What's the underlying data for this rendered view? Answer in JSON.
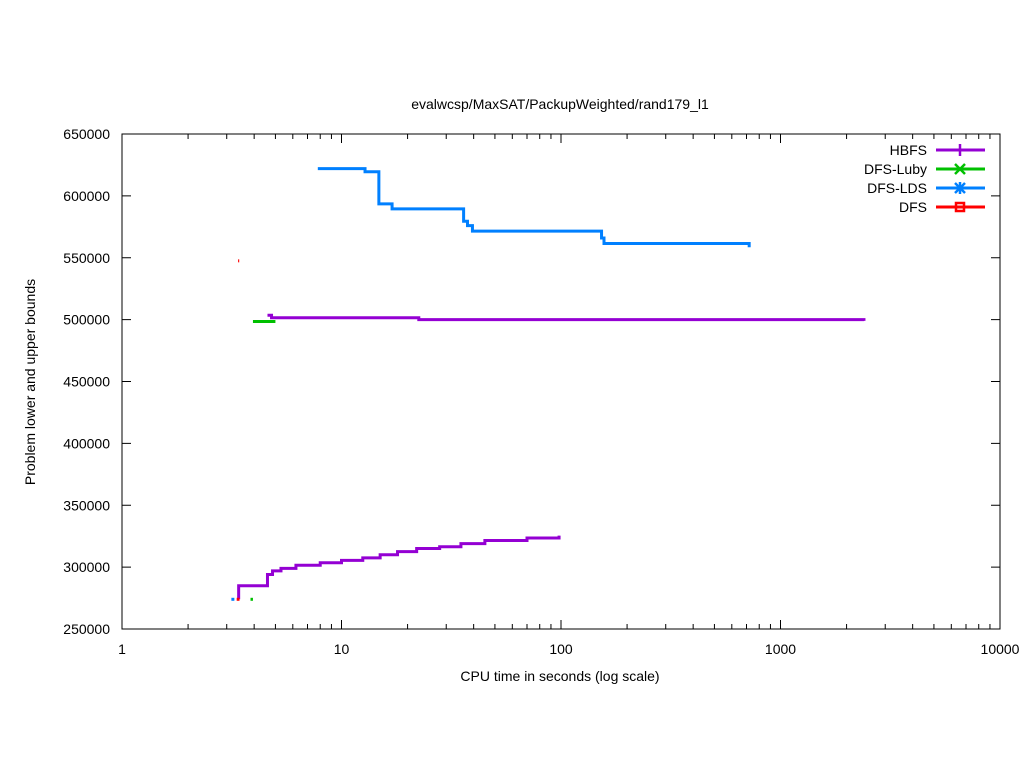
{
  "chart_data": {
    "type": "line",
    "title": "evalwcsp/MaxSAT/PackupWeighted/rand179_l1",
    "xlabel": "CPU time in seconds (log scale)",
    "ylabel": "Problem lower and upper bounds",
    "xscale": "log",
    "xlim": [
      1,
      10000
    ],
    "ylim": [
      250000,
      650000
    ],
    "xticks": [
      1,
      10,
      100,
      1000,
      10000
    ],
    "xtick_labels": [
      "1",
      "10",
      "100",
      "1000",
      "10000"
    ],
    "yticks": [
      250000,
      300000,
      350000,
      400000,
      450000,
      500000,
      550000,
      600000,
      650000
    ],
    "ytick_labels": [
      "250000",
      "300000",
      "350000",
      "400000",
      "450000",
      "500000",
      "550000",
      "600000",
      "650000"
    ],
    "grid": false,
    "legend_position": "top-right",
    "series": [
      {
        "name": "HBFS",
        "color": "#9400d3",
        "marker": "plus",
        "segments": [
          {
            "kind": "upper",
            "points": [
              [
                4.6,
                503500
              ],
              [
                4.8,
                503500
              ],
              [
                4.8,
                501500
              ],
              [
                22.5,
                501500
              ],
              [
                22.5,
                500000
              ],
              [
                2400,
                500000
              ],
              [
                2400,
                499000
              ]
            ]
          },
          {
            "kind": "lower",
            "points": [
              [
                3.4,
                274000
              ],
              [
                3.4,
                285000
              ],
              [
                4.6,
                285000
              ],
              [
                4.6,
                294000
              ],
              [
                4.85,
                294000
              ],
              [
                4.85,
                297000
              ],
              [
                5.3,
                297000
              ],
              [
                5.3,
                299000
              ],
              [
                6.2,
                299000
              ],
              [
                6.2,
                301500
              ],
              [
                8.0,
                301500
              ],
              [
                8.0,
                303500
              ],
              [
                10.0,
                303500
              ],
              [
                10.0,
                305500
              ],
              [
                12.5,
                305500
              ],
              [
                12.5,
                307500
              ],
              [
                15.0,
                307500
              ],
              [
                15.0,
                310000
              ],
              [
                18.0,
                310000
              ],
              [
                18.0,
                312500
              ],
              [
                22.0,
                312500
              ],
              [
                22.0,
                315000
              ],
              [
                28.0,
                315000
              ],
              [
                28.0,
                316500
              ],
              [
                35.0,
                316500
              ],
              [
                35.0,
                319000
              ],
              [
                45.0,
                319000
              ],
              [
                45.0,
                321500
              ],
              [
                70.0,
                321500
              ],
              [
                70.0,
                323500
              ],
              [
                98.0,
                323500
              ],
              [
                98.0,
                325500
              ]
            ]
          }
        ]
      },
      {
        "name": "DFS-Luby",
        "color": "#00c000",
        "marker": "cross",
        "segments": [
          {
            "kind": "upper",
            "points": [
              [
                3.95,
                498500
              ],
              [
                5.0,
                498500
              ]
            ]
          },
          {
            "kind": "lower",
            "points": [
              [
                3.85,
                274000
              ],
              [
                3.95,
                274000
              ]
            ]
          }
        ]
      },
      {
        "name": "DFS-LDS",
        "color": "#0080ff",
        "marker": "star",
        "segments": [
          {
            "kind": "upper",
            "points": [
              [
                7.8,
                622000
              ],
              [
                12.8,
                622000
              ],
              [
                12.8,
                619500
              ],
              [
                14.8,
                619500
              ],
              [
                14.8,
                593500
              ],
              [
                17.0,
                593500
              ],
              [
                17.0,
                589500
              ],
              [
                36.0,
                589500
              ],
              [
                36.0,
                579500
              ],
              [
                37.5,
                579500
              ],
              [
                37.5,
                576000
              ],
              [
                39.5,
                576000
              ],
              [
                39.5,
                571500
              ],
              [
                153.0,
                571500
              ],
              [
                153.0,
                566000
              ],
              [
                157.0,
                566000
              ],
              [
                157.0,
                561500
              ],
              [
                720.0,
                561500
              ],
              [
                720.0,
                558500
              ]
            ]
          },
          {
            "kind": "lower",
            "points": [
              [
                3.15,
                274000
              ],
              [
                3.25,
                274000
              ]
            ]
          }
        ]
      },
      {
        "name": "DFS",
        "color": "#ff0000",
        "marker": "square",
        "segments": [
          {
            "kind": "upper",
            "points": [
              [
                3.38,
                547500
              ],
              [
                3.42,
                547500
              ]
            ]
          },
          {
            "kind": "lower",
            "points": [
              [
                3.33,
                274000
              ],
              [
                3.43,
                274000
              ]
            ]
          }
        ]
      }
    ]
  }
}
